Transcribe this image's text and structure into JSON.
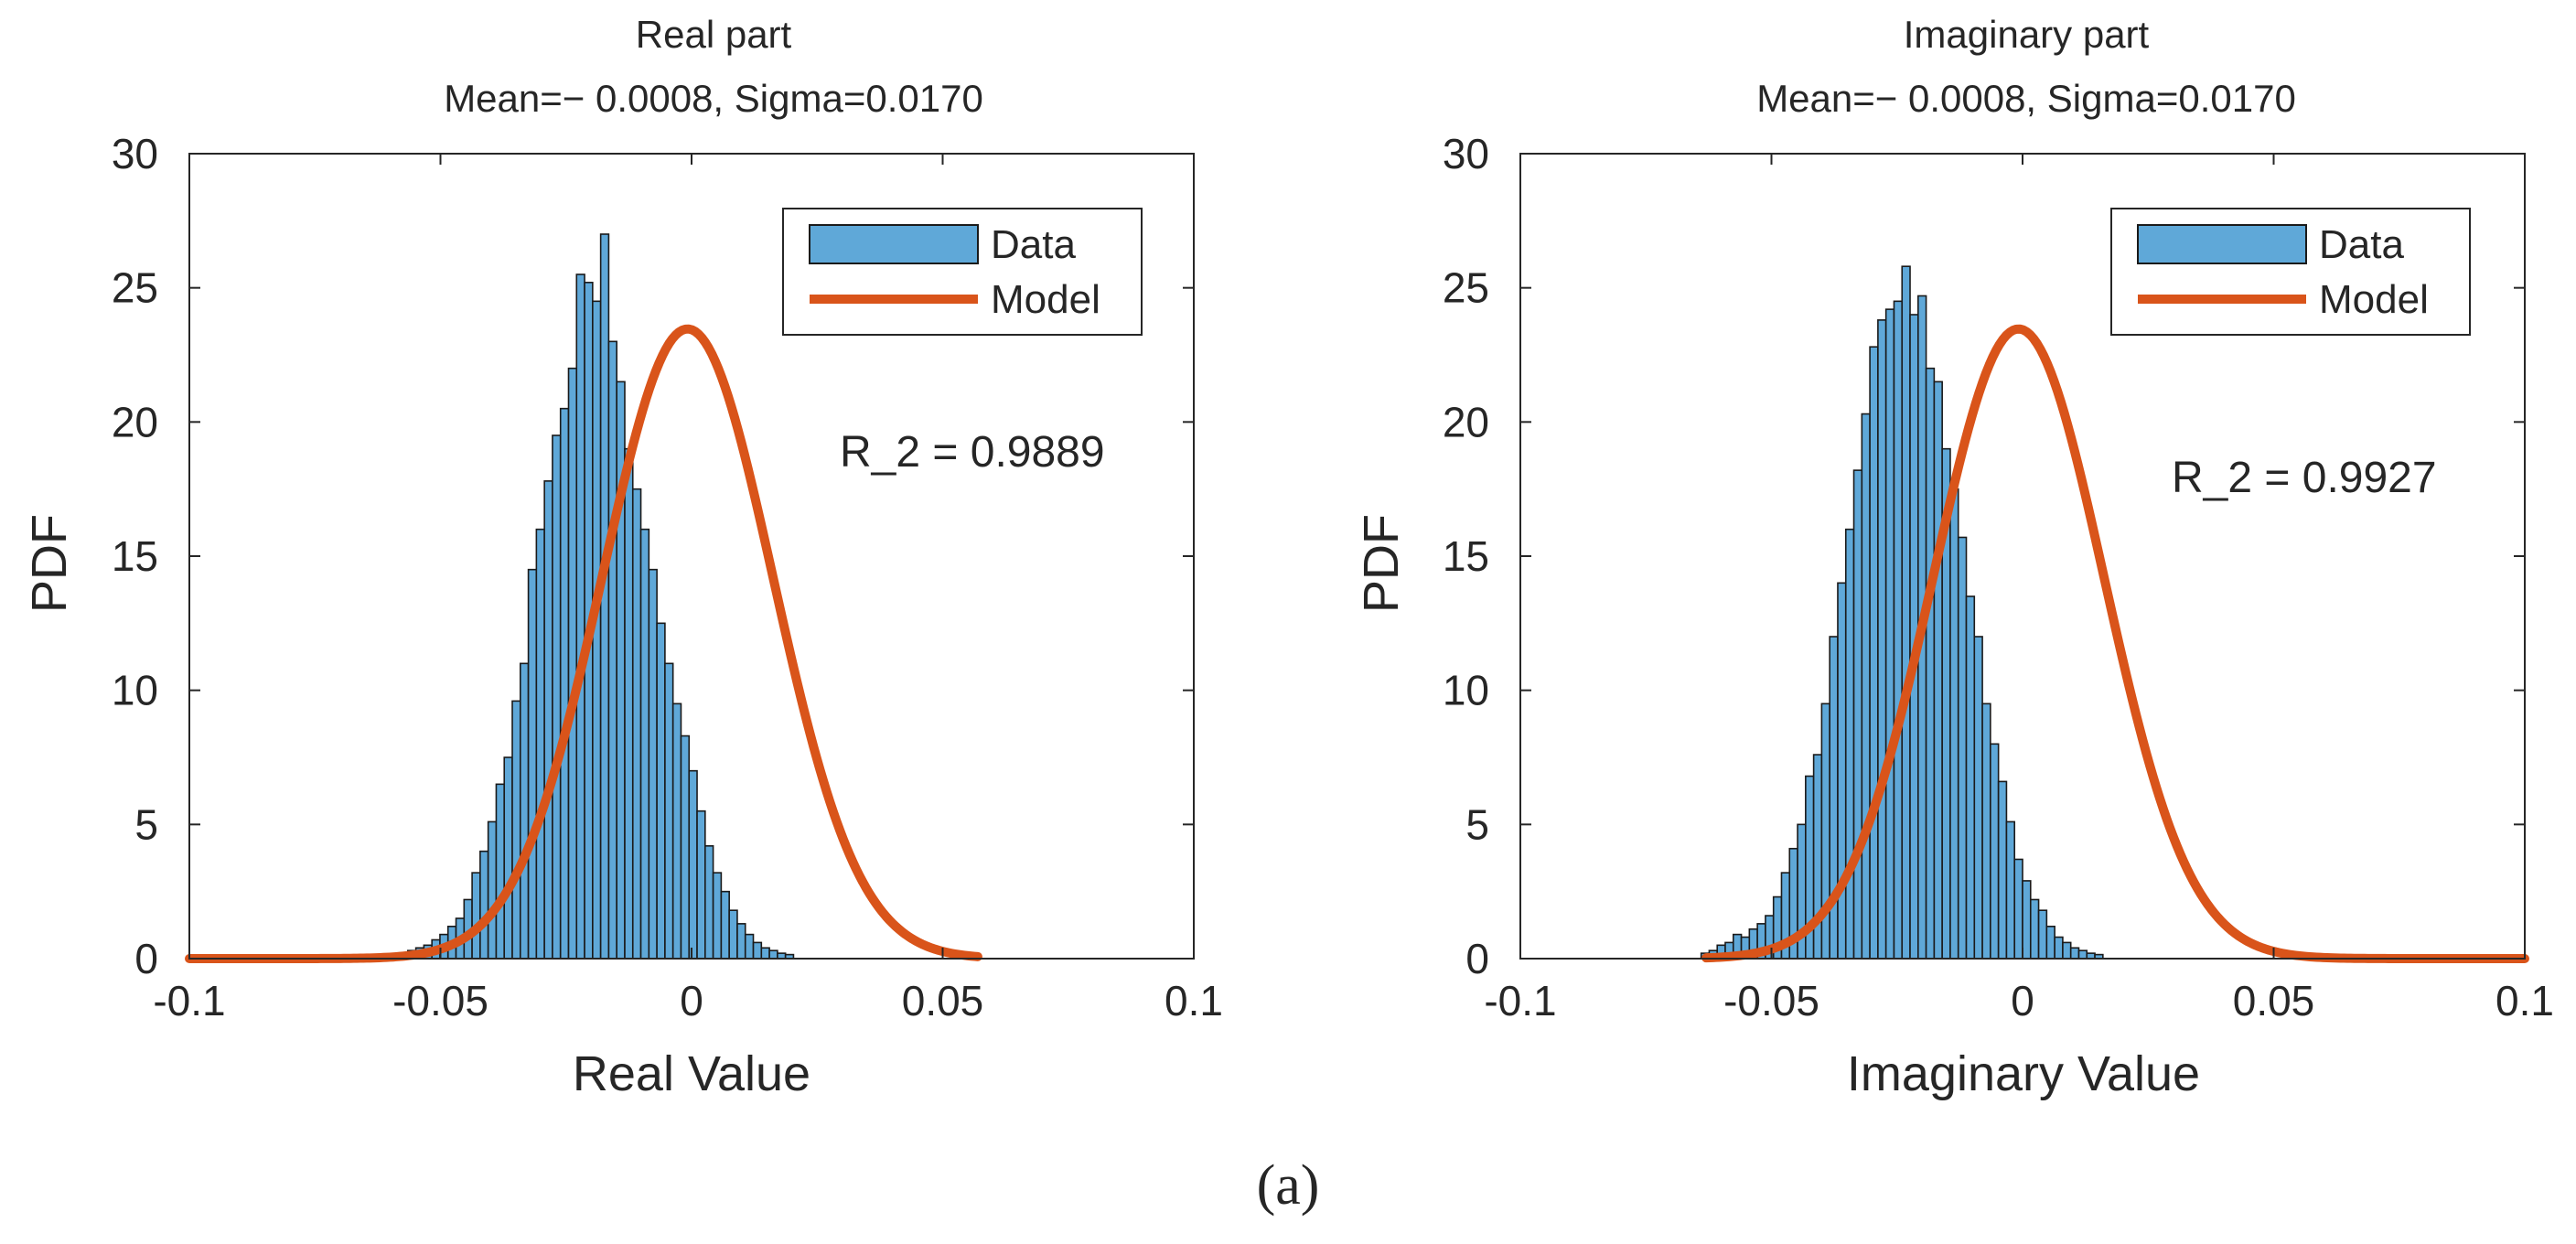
{
  "figure_label": "(a)",
  "colors": {
    "bar_fill": "#5fa8d8",
    "bar_edge": "#1a1a1a",
    "model_line": "#d9541a",
    "axis": "#262626"
  },
  "chart_data": [
    {
      "type": "bar",
      "title": "Real part",
      "subtitle": "Mean=− 0.0008, Sigma=0.0170",
      "xlabel": "Real Value",
      "ylabel": "PDF",
      "xlim": [
        -0.1,
        0.1
      ],
      "ylim": [
        0,
        30
      ],
      "xticks": [
        "-0.1",
        "-0.05",
        "0",
        "0.05",
        "0.1"
      ],
      "yticks": [
        "0",
        "5",
        "10",
        "15",
        "20",
        "25",
        "30"
      ],
      "grid": false,
      "legend": {
        "position": "top-right",
        "entries": [
          "Data",
          "Model"
        ]
      },
      "annotation": "R_2 = 0.9889",
      "series": [
        {
          "name": "Data",
          "kind": "histogram",
          "bin_start": -0.0565,
          "bin_width": 0.0016,
          "values": [
            0.3,
            0.4,
            0.5,
            0.7,
            0.9,
            1.2,
            1.5,
            2.2,
            3.2,
            4.0,
            5.1,
            6.5,
            7.5,
            9.6,
            11.0,
            14.5,
            16.0,
            17.8,
            19.5,
            20.5,
            22.0,
            25.5,
            25.2,
            24.5,
            27.0,
            23.0,
            21.5,
            19.0,
            17.5,
            16.0,
            14.5,
            12.5,
            11.0,
            9.5,
            8.3,
            7.0,
            5.5,
            4.2,
            3.2,
            2.5,
            1.8,
            1.3,
            0.9,
            0.6,
            0.4,
            0.3,
            0.2,
            0.15
          ]
        },
        {
          "name": "Model",
          "kind": "normal-pdf",
          "mean": -0.0008,
          "sigma": 0.017,
          "x_from": -0.1,
          "x_to": 0.057
        }
      ]
    },
    {
      "type": "bar",
      "title": "Imaginary part",
      "subtitle": "Mean=− 0.0008, Sigma=0.0170",
      "xlabel": "Imaginary Value",
      "ylabel": "PDF",
      "xlim": [
        -0.1,
        0.1
      ],
      "ylim": [
        0,
        30
      ],
      "xticks": [
        "-0.1",
        "-0.05",
        "0",
        "0.05",
        "0.1"
      ],
      "yticks": [
        "0",
        "5",
        "10",
        "15",
        "20",
        "25",
        "30"
      ],
      "grid": false,
      "legend": {
        "position": "top-right",
        "entries": [
          "Data",
          "Model"
        ]
      },
      "annotation": "R_2 = 0.9927",
      "series": [
        {
          "name": "Data",
          "kind": "histogram",
          "bin_start": -0.064,
          "bin_width": 0.0016,
          "values": [
            0.2,
            0.3,
            0.5,
            0.6,
            0.9,
            0.8,
            1.1,
            1.3,
            1.6,
            2.3,
            3.2,
            4.1,
            5.0,
            6.8,
            7.6,
            9.5,
            12.0,
            14.0,
            16.0,
            18.2,
            20.3,
            22.8,
            23.8,
            24.2,
            24.5,
            25.8,
            24.0,
            24.7,
            22.0,
            21.5,
            19.0,
            17.5,
            15.7,
            13.5,
            12.0,
            9.5,
            8.0,
            6.6,
            5.1,
            3.7,
            2.9,
            2.2,
            1.8,
            1.2,
            0.8,
            0.6,
            0.4,
            0.3,
            0.2,
            0.15
          ]
        },
        {
          "name": "Model",
          "kind": "normal-pdf",
          "mean": -0.0008,
          "sigma": 0.017,
          "x_from": -0.063,
          "x_to": 0.1
        }
      ]
    }
  ]
}
